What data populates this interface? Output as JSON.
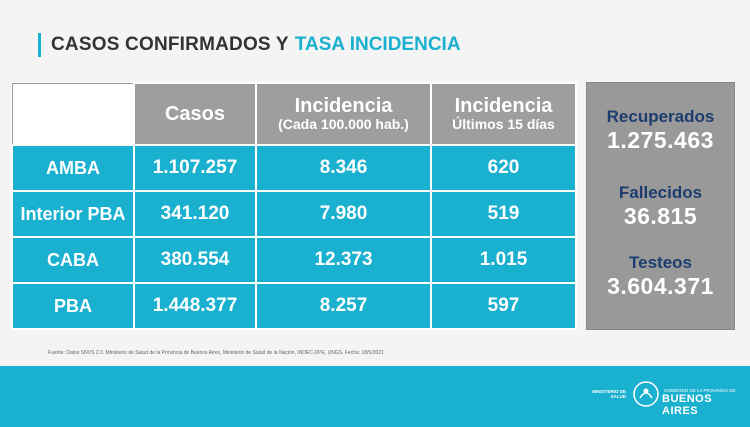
{
  "header": {
    "title_main": "CASOS CONFIRMADOS Y",
    "title_accent": "TASA INCIDENCIA"
  },
  "table": {
    "columns": [
      {
        "label": "Casos",
        "sub": ""
      },
      {
        "label": "Incidencia",
        "sub": "(Cada 100.000 hab.)"
      },
      {
        "label": "Incidencia",
        "sub": "Últimos 15 días"
      }
    ],
    "rows": [
      {
        "region": "AMBA",
        "casos": "1.107.257",
        "incidencia": "8.346",
        "incidencia15": "620"
      },
      {
        "region": "Interior PBA",
        "casos": "341.120",
        "incidencia": "7.980",
        "incidencia15": "519"
      },
      {
        "region": "CABA",
        "casos": "380.554",
        "incidencia": "12.373",
        "incidencia15": "1.015"
      },
      {
        "region": "PBA",
        "casos": "1.448.377",
        "incidencia": "8.257",
        "incidencia15": "597"
      }
    ]
  },
  "stats": {
    "recuperados_label": "Recuperados",
    "recuperados_value": "1.275.463",
    "fallecidos_label": "Fallecidos",
    "fallecidos_value": "36.815",
    "testeos_label": "Testeos",
    "testeos_value": "3.604.371"
  },
  "source": "Fuente: Datos SNVS 2.0. Ministerio de Salud de la Provincia de Buenos Aires, Ministerio de Salud de la Nación, INDEC-DPE, UNGS. Fecha: 18/5/2021",
  "footer": {
    "ministerio": "MINISTERIO DE SALUD",
    "gobierno_small": "GOBIERNO DE LA PROVINCIA DE",
    "gobierno_big": "BUENOS AIRES"
  },
  "colors": {
    "accent": "#1ab0cf",
    "header_gray": "#9e9e9e",
    "stat_label": "#1c3d6e"
  }
}
